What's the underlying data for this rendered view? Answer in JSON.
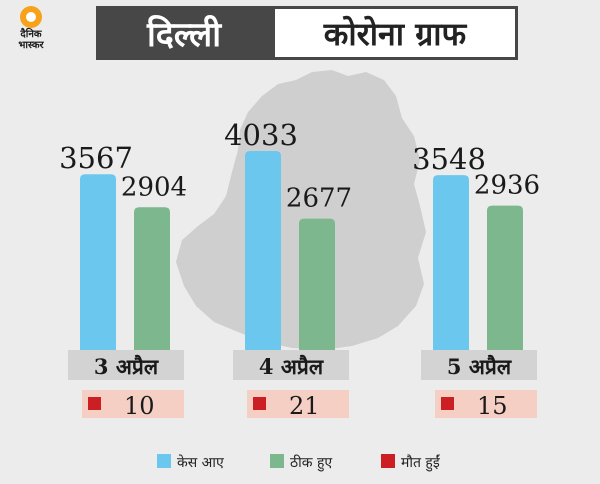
{
  "brand": {
    "logo_line1": "दैनिक",
    "logo_line2": "भास्कर"
  },
  "header": {
    "title_left": "दिल्ली",
    "title_right": "कोरोना ग्राफ"
  },
  "colors": {
    "cases": "#6cc7ef",
    "recovered": "#7db78e",
    "deaths": "#cc1f24"
  },
  "chart_data": {
    "type": "bar",
    "categories": [
      "3 अप्रैल",
      "4 अप्रैल",
      "5 अप्रैल"
    ],
    "series": [
      {
        "name": "केस आए",
        "values": [
          3567,
          4033,
          3548
        ]
      },
      {
        "name": "ठीक हुए",
        "values": [
          2904,
          2677,
          2936
        ]
      },
      {
        "name": "मौत हुईं",
        "values": [
          10,
          21,
          15
        ]
      }
    ],
    "title": "दिल्ली कोरोना ग्राफ",
    "legend_position": "bottom"
  }
}
